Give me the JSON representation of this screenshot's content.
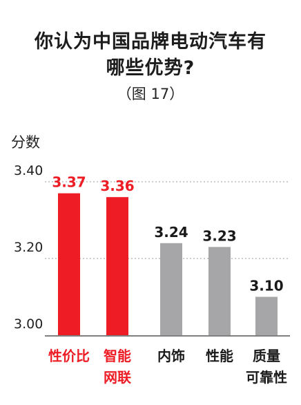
{
  "chart_data": {
    "type": "bar",
    "title_lines": [
      "你认为中国品牌电动汽车有",
      "哪些优势?"
    ],
    "subtitle": "（图 17）",
    "ylabel": "分数",
    "xlabel": "",
    "ylim": [
      3.0,
      3.4
    ],
    "yticks": [
      "3.40",
      "3.20",
      "3.00"
    ],
    "grid": "dotted horizontal",
    "categories": [
      [
        "性价比"
      ],
      [
        "智能",
        "网联"
      ],
      [
        "内饰"
      ],
      [
        "性能"
      ],
      [
        "质量",
        "可靠性"
      ]
    ],
    "values": [
      3.37,
      3.36,
      3.24,
      3.23,
      3.1
    ],
    "value_labels": [
      "3.37",
      "3.36",
      "3.24",
      "3.23",
      "3.10"
    ],
    "highlight": [
      true,
      true,
      false,
      false,
      false
    ],
    "colors": {
      "highlight": "#ee1c25",
      "normal": "#a6a6a8",
      "text": "#1a1a1a",
      "grid": "#999999"
    }
  }
}
